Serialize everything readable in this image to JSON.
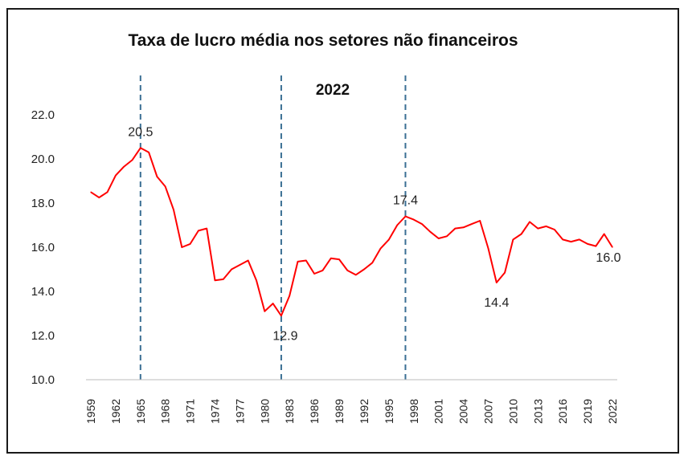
{
  "chart_data": {
    "type": "line",
    "title": "Taxa de lucro média nos setores não financeiros",
    "subtitle": "2022",
    "xlabel": "",
    "ylabel": "",
    "ylim": [
      10.0,
      22.0
    ],
    "yticks": [
      "10.0",
      "12.0",
      "14.0",
      "16.0",
      "18.0",
      "20.0",
      "22.0"
    ],
    "xticks": [
      "1959",
      "1962",
      "1965",
      "1968",
      "1971",
      "1974",
      "1977",
      "1980",
      "1983",
      "1986",
      "1989",
      "1992",
      "1995",
      "1998",
      "2001",
      "2004",
      "2007",
      "2010",
      "2013",
      "2016",
      "2019",
      "2022"
    ],
    "grid": false,
    "series": [
      {
        "name": "Taxa de lucro",
        "color": "#ff0000",
        "x": [
          1959,
          1960,
          1961,
          1962,
          1963,
          1964,
          1965,
          1966,
          1967,
          1968,
          1969,
          1970,
          1971,
          1972,
          1973,
          1974,
          1975,
          1976,
          1977,
          1978,
          1979,
          1980,
          1981,
          1982,
          1983,
          1984,
          1985,
          1986,
          1987,
          1988,
          1989,
          1990,
          1991,
          1992,
          1993,
          1994,
          1995,
          1996,
          1997,
          1998,
          1999,
          2000,
          2001,
          2002,
          2003,
          2004,
          2005,
          2006,
          2007,
          2008,
          2009,
          2010,
          2011,
          2012,
          2013,
          2014,
          2015,
          2016,
          2017,
          2018,
          2019,
          2020,
          2021,
          2022
        ],
        "values": [
          18.5,
          18.25,
          18.5,
          19.25,
          19.65,
          19.95,
          20.5,
          20.3,
          19.2,
          18.75,
          17.7,
          16.0,
          16.15,
          16.75,
          16.85,
          14.5,
          14.55,
          15.0,
          15.2,
          15.4,
          14.5,
          13.1,
          13.45,
          12.9,
          13.8,
          15.35,
          15.4,
          14.8,
          14.95,
          15.5,
          15.45,
          14.95,
          14.75,
          15.0,
          15.3,
          15.95,
          16.35,
          17.0,
          17.4,
          17.25,
          17.05,
          16.7,
          16.4,
          16.5,
          16.85,
          16.9,
          17.05,
          17.2,
          15.95,
          14.4,
          14.85,
          16.35,
          16.6,
          17.15,
          16.85,
          16.95,
          16.8,
          16.35,
          16.25,
          16.35,
          16.15,
          16.05,
          16.6,
          16.0
        ]
      }
    ],
    "annotations": [
      {
        "text": "20.5",
        "year": 1965,
        "value": 20.5
      },
      {
        "text": "12.9",
        "year": 1982,
        "value": 12.9
      },
      {
        "text": "17.4",
        "year": 1997,
        "value": 17.4
      },
      {
        "text": "14.4",
        "year": 2008,
        "value": 14.4
      },
      {
        "text": "16.0",
        "year": 2022,
        "value": 16.0
      }
    ],
    "reference_lines": [
      {
        "year": 1965,
        "color": "#3a6f94",
        "style": "dashed"
      },
      {
        "year": 1982,
        "color": "#3a6f94",
        "style": "dashed"
      },
      {
        "year": 1997,
        "color": "#3a6f94",
        "style": "dashed"
      }
    ]
  }
}
